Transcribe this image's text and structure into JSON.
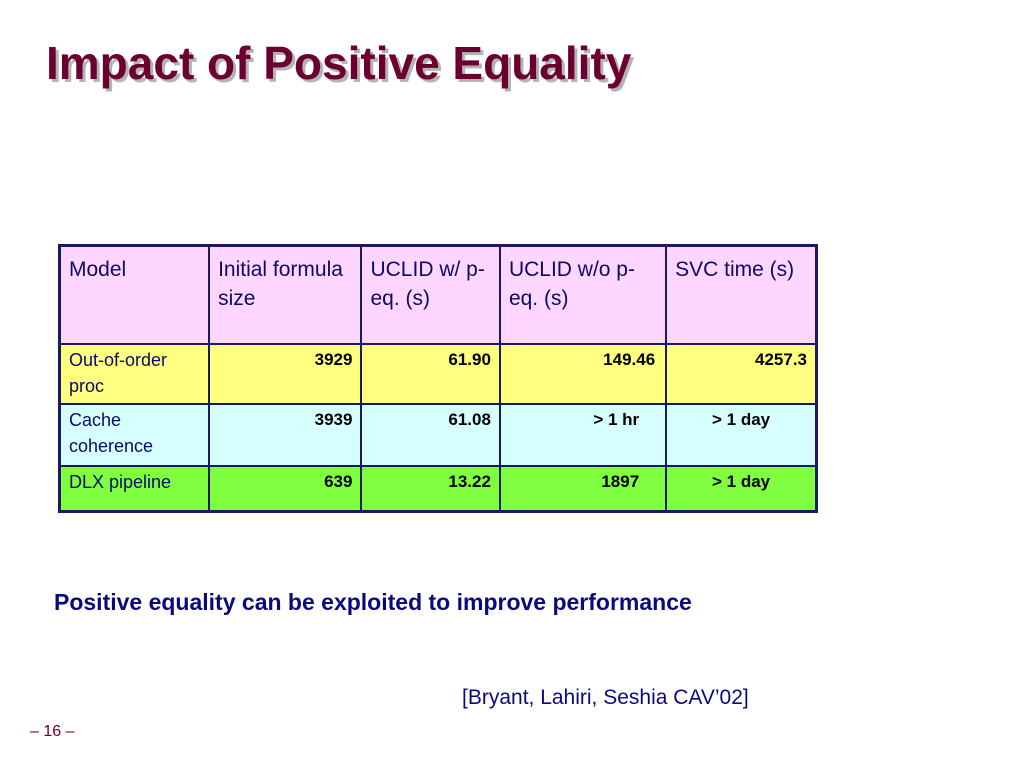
{
  "slide": {
    "title": "Impact of Positive Equality",
    "takeaway": "Positive equality can be exploited to improve performance",
    "citation": "[Bryant, Lahiri, Seshia CAV’02]",
    "page_number": "– 16 –"
  },
  "table": {
    "headers": {
      "model": "Model",
      "formula_size": "Initial formula size",
      "uclid_with": "UCLID w/ p-eq.  (s)",
      "uclid_without": "UCLID w/o p-eq. (s)",
      "svc_time": "SVC time (s)"
    },
    "rows": [
      {
        "model": "Out-of-order proc",
        "formula_size": "3929",
        "uclid_with": "61.90",
        "uclid_without": "149.46",
        "svc_time": "4257.3",
        "color": "#ffff80"
      },
      {
        "model": "Cache coherence",
        "formula_size": "3939",
        "uclid_with": "61.08",
        "uclid_without": "> 1 hr",
        "svc_time": "> 1 day",
        "color": "#d6ffff"
      },
      {
        "model": "DLX pipeline",
        "formula_size": "639",
        "uclid_with": "13.22",
        "uclid_without": "1897",
        "svc_time": "> 1 day",
        "color": "#80ff40"
      }
    ]
  },
  "colors": {
    "title": "#6b0030",
    "header_bg": "#ffd6ff",
    "text": "#0a0a80",
    "border": "#1a1a5e"
  }
}
